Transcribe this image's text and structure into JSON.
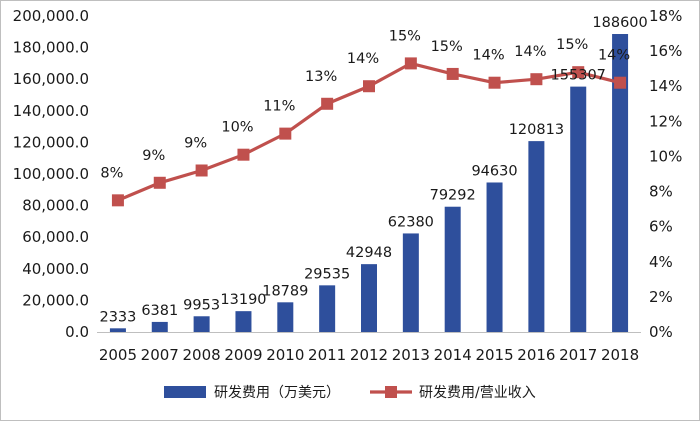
{
  "chart_data": {
    "type": "bar+line",
    "categories": [
      "2005",
      "2007",
      "2008",
      "2009",
      "2010",
      "2011",
      "2012",
      "2013",
      "2014",
      "2015",
      "2016",
      "2017",
      "2018"
    ],
    "series": [
      {
        "name": "研发费用（万美元）",
        "type": "bar",
        "axis": "left",
        "color": "#2e4f9c",
        "values": [
          2333,
          6381,
          9953,
          13190,
          18789,
          29535,
          42948,
          62380,
          79292,
          94630,
          120813,
          155307,
          188600
        ],
        "labels": [
          "2333",
          "6381",
          "9953",
          "13190",
          "18789",
          "29535",
          "42948",
          "62380",
          "79292",
          "94630",
          "120813",
          "155307",
          "188600"
        ]
      },
      {
        "name": "研发费用/营业收入",
        "type": "line",
        "axis": "right",
        "color": "#c0504d",
        "values": [
          7.5,
          8.5,
          9.2,
          10.1,
          11.3,
          13.0,
          14.0,
          15.3,
          14.7,
          14.2,
          14.4,
          14.8,
          14.2
        ],
        "labels": [
          "8%",
          "9%",
          "9%",
          "10%",
          "11%",
          "13%",
          "14%",
          "15%",
          "15%",
          "14%",
          "14%",
          "15%",
          "14%"
        ]
      }
    ],
    "y_left": {
      "min": 0,
      "max": 200000,
      "step": 20000,
      "tick_labels": [
        "0.0",
        "20,000.0",
        "40,000.0",
        "60,000.0",
        "80,000.0",
        "100,000.0",
        "120,000.0",
        "140,000.0",
        "160,000.0",
        "180,000.0",
        "200,000.0"
      ]
    },
    "y_right": {
      "min": 0,
      "max": 18,
      "step": 2,
      "tick_labels": [
        "0%",
        "2%",
        "4%",
        "6%",
        "8%",
        "10%",
        "12%",
        "14%",
        "16%",
        "18%"
      ]
    },
    "legend": {
      "position": "bottom",
      "entries": [
        {
          "label": "研发费用（万美元）",
          "kind": "bar",
          "color": "#2e4f9c"
        },
        {
          "label": "研发费用/营业收入",
          "kind": "line",
          "color": "#c0504d"
        }
      ]
    },
    "title": "",
    "xlabel": "",
    "ylabel": ""
  }
}
